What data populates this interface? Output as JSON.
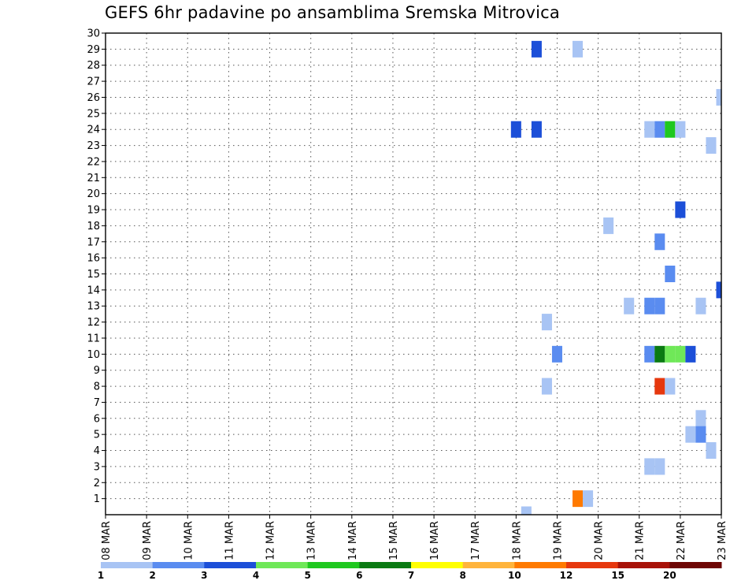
{
  "chart_data": {
    "type": "heatmap",
    "title": "GEFS 6hr padavine po ansamblima Sremska Mitrovica",
    "xlabel": "",
    "ylabel": "",
    "x_ticks": [
      "08 MAR",
      "09 MAR",
      "10 MAR",
      "11 MAR",
      "12 MAR",
      "13 MAR",
      "14 MAR",
      "15 MAR",
      "16 MAR",
      "17 MAR",
      "18 MAR",
      "19 MAR",
      "20 MAR",
      "21 MAR",
      "22 MAR",
      "23 MAR"
    ],
    "y_ticks": [
      "1",
      "2",
      "3",
      "4",
      "5",
      "6",
      "7",
      "8",
      "9",
      "10",
      "11",
      "12",
      "13",
      "14",
      "15",
      "16",
      "17",
      "18",
      "19",
      "20",
      "21",
      "22",
      "23",
      "24",
      "25",
      "26",
      "27",
      "28",
      "29",
      "30"
    ],
    "x_range_days": [
      0,
      15
    ],
    "y_range": [
      0,
      30
    ],
    "grid": true,
    "legend_position": "bottom",
    "legend": {
      "bins": [
        {
          "label": "1",
          "color": "#a8c4f4"
        },
        {
          "label": "2",
          "color": "#5a8cf0"
        },
        {
          "label": "3",
          "color": "#1c4fd8"
        },
        {
          "label": "4",
          "color": "#6fe858"
        },
        {
          "label": "5",
          "color": "#1fc81f"
        },
        {
          "label": "6",
          "color": "#0a7a12"
        },
        {
          "label": "7",
          "color": "#ffff00"
        },
        {
          "label": "8",
          "color": "#ffb43c"
        },
        {
          "label": "10",
          "color": "#ff7a00"
        },
        {
          "label": "12",
          "color": "#e6380e"
        },
        {
          "label": "15",
          "color": "#a81208"
        },
        {
          "label": "20",
          "color": "#6e0604"
        }
      ]
    },
    "cells": [
      {
        "member": 29,
        "time": "18 MAR 12z",
        "bin": "3"
      },
      {
        "member": 29,
        "time": "19 MAR 12z",
        "bin": "1"
      },
      {
        "member": 26,
        "time": "23 MAR 00z",
        "bin": "1"
      },
      {
        "member": 24,
        "time": "18 MAR 00z",
        "bin": "3"
      },
      {
        "member": 24,
        "time": "18 MAR 12z",
        "bin": "3"
      },
      {
        "member": 24,
        "time": "21 MAR 06z",
        "bin": "1"
      },
      {
        "member": 24,
        "time": "21 MAR 12z",
        "bin": "2"
      },
      {
        "member": 24,
        "time": "21 MAR 18z",
        "bin": "5"
      },
      {
        "member": 24,
        "time": "22 MAR 00z",
        "bin": "1"
      },
      {
        "member": 23,
        "time": "22 MAR 18z",
        "bin": "1"
      },
      {
        "member": 19,
        "time": "22 MAR 00z",
        "bin": "3"
      },
      {
        "member": 18,
        "time": "20 MAR 06z",
        "bin": "1"
      },
      {
        "member": 17,
        "time": "21 MAR 12z",
        "bin": "2"
      },
      {
        "member": 15,
        "time": "21 MAR 18z",
        "bin": "2"
      },
      {
        "member": 14,
        "time": "23 MAR 00z",
        "bin": "3"
      },
      {
        "member": 13,
        "time": "20 MAR 18z",
        "bin": "1"
      },
      {
        "member": 13,
        "time": "21 MAR 06z",
        "bin": "2"
      },
      {
        "member": 13,
        "time": "21 MAR 12z",
        "bin": "2"
      },
      {
        "member": 13,
        "time": "22 MAR 12z",
        "bin": "1"
      },
      {
        "member": 12,
        "time": "18 MAR 18z",
        "bin": "1"
      },
      {
        "member": 10,
        "time": "19 MAR 00z",
        "bin": "2"
      },
      {
        "member": 10,
        "time": "21 MAR 06z",
        "bin": "2"
      },
      {
        "member": 10,
        "time": "21 MAR 12z",
        "bin": "6"
      },
      {
        "member": 10,
        "time": "21 MAR 18z",
        "bin": "4"
      },
      {
        "member": 10,
        "time": "22 MAR 00z",
        "bin": "4"
      },
      {
        "member": 10,
        "time": "22 MAR 06z",
        "bin": "3"
      },
      {
        "member": 8,
        "time": "18 MAR 18z",
        "bin": "1"
      },
      {
        "member": 8,
        "time": "21 MAR 12z",
        "bin": "12"
      },
      {
        "member": 8,
        "time": "21 MAR 18z",
        "bin": "1"
      },
      {
        "member": 6,
        "time": "22 MAR 12z",
        "bin": "1"
      },
      {
        "member": 5,
        "time": "22 MAR 06z",
        "bin": "1"
      },
      {
        "member": 5,
        "time": "22 MAR 12z",
        "bin": "2"
      },
      {
        "member": 4,
        "time": "22 MAR 18z",
        "bin": "1"
      },
      {
        "member": 3,
        "time": "21 MAR 06z",
        "bin": "1"
      },
      {
        "member": 3,
        "time": "21 MAR 12z",
        "bin": "1"
      },
      {
        "member": 1,
        "time": "19 MAR 12z",
        "bin": "10"
      },
      {
        "member": 1,
        "time": "19 MAR 18z",
        "bin": "1"
      },
      {
        "member": 0,
        "time": "18 MAR 06z",
        "bin": "1"
      }
    ]
  }
}
